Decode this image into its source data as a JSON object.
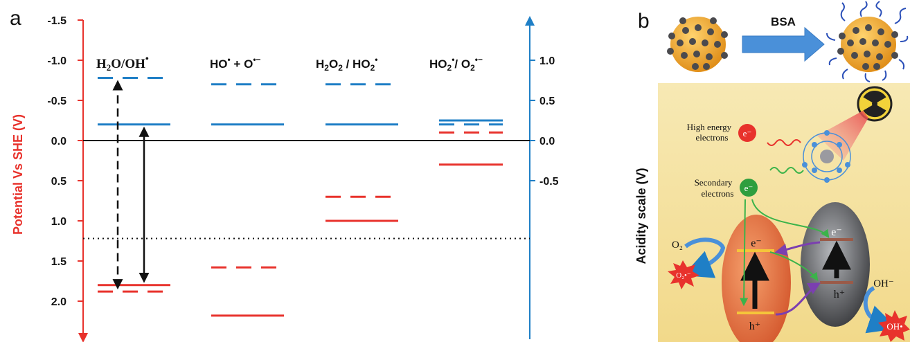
{
  "panel_a": {
    "label": "a",
    "left_axis": {
      "title": "Potential Vs SHE (V)",
      "color": "#e8322c",
      "ticks": [
        -1.5,
        -1.0,
        -0.5,
        0.0,
        0.5,
        1.0,
        1.5,
        2.0
      ],
      "tick_labels": [
        "-1.5",
        "-1.0",
        "-0.5",
        "0.0",
        "0.5",
        "1.0",
        "1.5",
        "2.0"
      ]
    },
    "right_axis": {
      "color": "#1f7fc6",
      "ticks": [
        1.0,
        0.5,
        0.0,
        -0.5
      ],
      "tick_labels": [
        "1.0",
        "0.5",
        "0.0",
        "-0.5"
      ]
    },
    "couples": [
      {
        "label": "H₂O/OH•"
      },
      {
        "label": "HO• + O•⁻"
      },
      {
        "label": "H₂O₂ / HO₂•"
      },
      {
        "label": "HO₂•/ O₂•⁻"
      }
    ],
    "zero_line": 0.0,
    "dotted_line": 1.22,
    "levels": [
      {
        "col": 0,
        "potential": -0.78,
        "color": "blue",
        "style": "dashed"
      },
      {
        "col": 0,
        "potential": -0.2,
        "color": "blue",
        "style": "solid"
      },
      {
        "col": 0,
        "potential": 1.8,
        "color": "red",
        "style": "solid"
      },
      {
        "col": 0,
        "potential": 1.88,
        "color": "red",
        "style": "dashed"
      },
      {
        "col": 1,
        "potential": -0.7,
        "color": "blue",
        "style": "dashed"
      },
      {
        "col": 1,
        "potential": -0.2,
        "color": "blue",
        "style": "solid"
      },
      {
        "col": 1,
        "potential": 1.58,
        "color": "red",
        "style": "dashed"
      },
      {
        "col": 1,
        "potential": 2.18,
        "color": "red",
        "style": "solid"
      },
      {
        "col": 2,
        "potential": -0.7,
        "color": "blue",
        "style": "dashed"
      },
      {
        "col": 2,
        "potential": -0.2,
        "color": "blue",
        "style": "solid"
      },
      {
        "col": 2,
        "potential": 0.7,
        "color": "red",
        "style": "dashed"
      },
      {
        "col": 2,
        "potential": 1.0,
        "color": "red",
        "style": "solid"
      },
      {
        "col": 3,
        "potential": -0.25,
        "color": "blue",
        "style": "solid"
      },
      {
        "col": 3,
        "potential": -0.2,
        "color": "blue",
        "style": "dashed"
      },
      {
        "col": 3,
        "potential": -0.1,
        "color": "red",
        "style": "dashed"
      },
      {
        "col": 3,
        "potential": 0.3,
        "color": "red",
        "style": "solid"
      }
    ],
    "arrows": [
      {
        "from": -0.78,
        "to": 1.88,
        "style": "dashed"
      },
      {
        "from": -0.2,
        "to": 1.8,
        "style": "solid"
      }
    ]
  },
  "panel_b": {
    "label": "b",
    "process_label": "BSA",
    "axis_title": "Acidity scale (V)",
    "labels": {
      "high_energy": [
        "High energy",
        "electrons"
      ],
      "secondary": [
        "Secondary",
        "electrons"
      ],
      "e_minus": "e⁻",
      "h_plus": "h⁺",
      "o2": "O₂",
      "o2_radical": "O₂•⁻",
      "oh_minus": "OH⁻",
      "oh_radical": "OH•"
    }
  },
  "colors": {
    "red": "#e8322c",
    "blue": "#1f7fc6",
    "black": "#111111"
  }
}
